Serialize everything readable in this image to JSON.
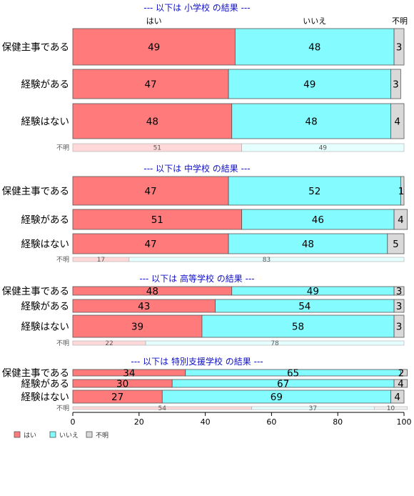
{
  "chart_data": {
    "type": "bar",
    "orientation": "horizontal",
    "stacked": true,
    "xlim": [
      0,
      100
    ],
    "xticks": [
      0,
      20,
      40,
      60,
      80,
      100
    ],
    "grid": false,
    "legend_position": "bottom-left",
    "series": [
      {
        "name": "はい",
        "color": "#ff7b7b",
        "light_color": "#ffd9d9"
      },
      {
        "name": "いいえ",
        "color": "#84fbff",
        "light_color": "#e6ffff"
      },
      {
        "name": "不明",
        "color": "#d9d9d9",
        "light_color": "#f0f0f0"
      }
    ],
    "header_labels": [
      "はい",
      "いいえ",
      "不明"
    ],
    "panels": [
      {
        "title": "--- 以下は 小学校 の結果 ---",
        "rows": [
          {
            "label": "保健主事である",
            "values": [
              49,
              48,
              3
            ]
          },
          {
            "label": "経験がある",
            "values": [
              47,
              49,
              3
            ]
          },
          {
            "label": "経験はない",
            "values": [
              48,
              48,
              4
            ]
          }
        ],
        "unknown_row": {
          "label": "不明",
          "values": [
            51,
            49,
            0
          ]
        }
      },
      {
        "title": "--- 以下は 中学校 の結果 ---",
        "rows": [
          {
            "label": "保健主事である",
            "values": [
              47,
              52,
              1
            ]
          },
          {
            "label": "経験がある",
            "values": [
              51,
              46,
              4
            ]
          },
          {
            "label": "経験はない",
            "values": [
              47,
              48,
              5
            ]
          }
        ],
        "unknown_row": {
          "label": "不明",
          "values": [
            17,
            83,
            0
          ]
        }
      },
      {
        "title": "--- 以下は 高等学校 の結果 ---",
        "rows": [
          {
            "label": "保健主事である",
            "values": [
              48,
              49,
              3
            ]
          },
          {
            "label": "経験がある",
            "values": [
              43,
              54,
              3
            ]
          },
          {
            "label": "経験はない",
            "values": [
              39,
              58,
              3
            ]
          }
        ],
        "unknown_row": {
          "label": "不明",
          "values": [
            22,
            78,
            0
          ]
        }
      },
      {
        "title": "--- 以下は 特別支援学校 の結果 ---",
        "rows": [
          {
            "label": "保健主事である",
            "values": [
              34,
              65,
              2
            ]
          },
          {
            "label": "経験がある",
            "values": [
              30,
              67,
              4
            ]
          },
          {
            "label": "経験はない",
            "values": [
              27,
              69,
              4
            ]
          }
        ],
        "unknown_row": {
          "label": "不明",
          "values": [
            54,
            37,
            10
          ]
        }
      }
    ]
  }
}
